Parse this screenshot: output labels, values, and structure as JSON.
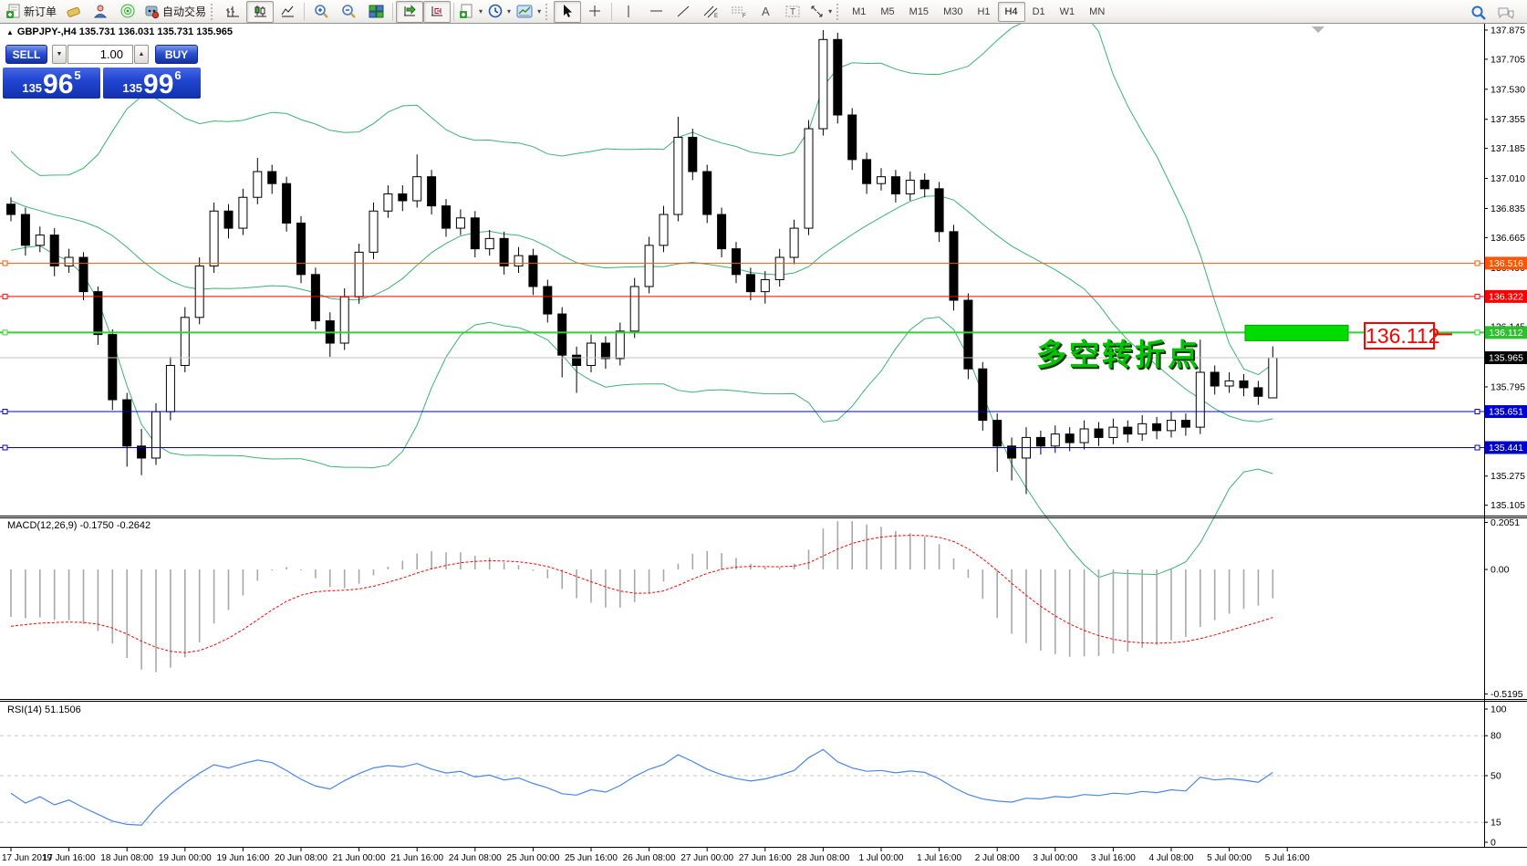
{
  "toolbar": {
    "new_order_label": "新订单",
    "auto_trading_label": "自动交易",
    "timeframes": [
      "M1",
      "M5",
      "M15",
      "M30",
      "H1",
      "H4",
      "D1",
      "W1",
      "MN"
    ],
    "active_timeframe": "H4"
  },
  "one_click": {
    "sell_label": "SELL",
    "buy_label": "BUY",
    "volume": "1.00",
    "sell_price": {
      "small": "135",
      "big": "96",
      "sup": "5"
    },
    "buy_price": {
      "small": "135",
      "big": "99",
      "sup": "6"
    }
  },
  "chart_header": {
    "title": "GBPJPY-,H4  135.731 136.031 135.731 135.965"
  },
  "indicator_labels": {
    "macd": "MACD(12,26,9) -0.1750 -0.2642",
    "rsi": "RSI(14) 51.1506"
  },
  "annotation": {
    "text": "多空转折点",
    "price_label": "136.112"
  },
  "chart_data": {
    "type": "candlestick",
    "symbol": "GBPJPY-",
    "timeframe": "H4",
    "title": "GBPJPY-,H4  135.731 136.031 135.731 135.965",
    "price_axis": {
      "ylim": [
        135.05,
        137.912
      ],
      "ticks": [
        137.875,
        137.705,
        137.53,
        137.355,
        137.185,
        137.01,
        136.835,
        136.665,
        136.49,
        136.145,
        135.795,
        135.275,
        135.105
      ]
    },
    "hlines": [
      {
        "price": 136.516,
        "color": "#ff5500",
        "badge": "#ff5500",
        "width": 1,
        "bid": false
      },
      {
        "price": 136.322,
        "color": "#ff0000",
        "badge": "#ff0000",
        "width": 1,
        "bid": false
      },
      {
        "price": 136.112,
        "color": "#2fd42f",
        "badge": "#2fbe2f",
        "width": 2,
        "bid": false
      },
      {
        "price": 135.965,
        "color": "#c0c0c0",
        "badge": "#000000",
        "width": 1,
        "bid": true
      },
      {
        "price": 135.651,
        "color": "#0000cd",
        "badge": "#0000cd",
        "width": 1,
        "bid": false
      },
      {
        "price": 135.441,
        "color": "#0000cd",
        "badge": "#0000cd",
        "width": 1,
        "bid": false
      }
    ],
    "highlight_rect": {
      "x": 1365,
      "width": 113,
      "price": 136.112,
      "color": "#00dc00"
    },
    "candles": [
      [
        136.86,
        136.9,
        136.76,
        136.8
      ],
      [
        136.8,
        136.84,
        136.56,
        136.62
      ],
      [
        136.62,
        136.73,
        136.58,
        136.68
      ],
      [
        136.68,
        136.72,
        136.44,
        136.5
      ],
      [
        136.5,
        136.6,
        136.46,
        136.55
      ],
      [
        136.55,
        136.58,
        136.3,
        136.35
      ],
      [
        136.35,
        136.38,
        136.04,
        136.1
      ],
      [
        136.1,
        136.13,
        135.66,
        135.72
      ],
      [
        135.72,
        135.76,
        135.33,
        135.45
      ],
      [
        135.45,
        135.55,
        135.28,
        135.38
      ],
      [
        135.38,
        135.7,
        135.34,
        135.65
      ],
      [
        135.65,
        135.97,
        135.6,
        135.92
      ],
      [
        135.92,
        136.26,
        135.88,
        136.2
      ],
      [
        136.2,
        136.55,
        136.16,
        136.5
      ],
      [
        136.5,
        136.87,
        136.46,
        136.82
      ],
      [
        136.82,
        136.86,
        136.66,
        136.72
      ],
      [
        136.72,
        136.95,
        136.68,
        136.9
      ],
      [
        136.9,
        137.13,
        136.86,
        137.05
      ],
      [
        137.05,
        137.09,
        136.92,
        136.98
      ],
      [
        136.98,
        137.02,
        136.7,
        136.75
      ],
      [
        136.75,
        136.79,
        136.4,
        136.45
      ],
      [
        136.45,
        136.49,
        136.13,
        136.18
      ],
      [
        136.18,
        136.23,
        135.97,
        136.05
      ],
      [
        136.05,
        136.37,
        136.01,
        136.32
      ],
      [
        136.32,
        136.63,
        136.28,
        136.58
      ],
      [
        136.58,
        136.87,
        136.54,
        136.82
      ],
      [
        136.82,
        136.97,
        136.78,
        136.92
      ],
      [
        136.92,
        136.97,
        136.82,
        136.88
      ],
      [
        136.88,
        137.15,
        136.84,
        137.02
      ],
      [
        137.02,
        137.06,
        136.8,
        136.85
      ],
      [
        136.85,
        136.89,
        136.67,
        136.72
      ],
      [
        136.72,
        136.83,
        136.68,
        136.78
      ],
      [
        136.78,
        136.82,
        136.55,
        136.6
      ],
      [
        136.6,
        136.71,
        136.56,
        136.66
      ],
      [
        136.66,
        136.7,
        136.45,
        136.5
      ],
      [
        136.5,
        136.61,
        136.46,
        136.56
      ],
      [
        136.56,
        136.6,
        136.33,
        136.38
      ],
      [
        136.38,
        136.42,
        136.17,
        136.22
      ],
      [
        136.22,
        136.26,
        135.85,
        135.98
      ],
      [
        135.98,
        136.03,
        135.76,
        135.92
      ],
      [
        135.92,
        136.1,
        135.88,
        136.05
      ],
      [
        136.05,
        136.09,
        135.9,
        135.96
      ],
      [
        135.96,
        136.17,
        135.92,
        136.12
      ],
      [
        136.12,
        136.43,
        136.08,
        136.38
      ],
      [
        136.38,
        136.67,
        136.34,
        136.62
      ],
      [
        136.62,
        136.85,
        136.58,
        136.8
      ],
      [
        136.8,
        137.37,
        136.76,
        137.25
      ],
      [
        137.25,
        137.3,
        137.0,
        137.05
      ],
      [
        137.05,
        137.09,
        136.75,
        136.8
      ],
      [
        136.8,
        136.84,
        136.55,
        136.6
      ],
      [
        136.6,
        136.64,
        136.4,
        136.45
      ],
      [
        136.45,
        136.49,
        136.3,
        136.35
      ],
      [
        136.35,
        136.47,
        136.28,
        136.42
      ],
      [
        136.42,
        136.6,
        136.38,
        136.55
      ],
      [
        136.55,
        136.77,
        136.51,
        136.72
      ],
      [
        136.72,
        137.35,
        136.68,
        137.3
      ],
      [
        137.3,
        137.875,
        137.26,
        137.82
      ],
      [
        137.82,
        137.86,
        137.33,
        137.38
      ],
      [
        137.38,
        137.42,
        137.06,
        137.12
      ],
      [
        137.12,
        137.16,
        136.92,
        136.98
      ],
      [
        136.98,
        137.07,
        136.94,
        137.02
      ],
      [
        137.02,
        137.06,
        136.87,
        136.92
      ],
      [
        136.92,
        137.05,
        136.88,
        137.0
      ],
      [
        137.0,
        137.04,
        136.9,
        136.95
      ],
      [
        136.95,
        136.99,
        136.64,
        136.7
      ],
      [
        136.7,
        136.74,
        136.24,
        136.3
      ],
      [
        136.3,
        136.34,
        135.84,
        135.9
      ],
      [
        135.9,
        135.94,
        135.54,
        135.6
      ],
      [
        135.6,
        135.64,
        135.3,
        135.45
      ],
      [
        135.45,
        135.5,
        135.25,
        135.38
      ],
      [
        135.38,
        135.56,
        135.17,
        135.5
      ],
      [
        135.5,
        135.54,
        135.4,
        135.45
      ],
      [
        135.45,
        135.57,
        135.41,
        135.52
      ],
      [
        135.52,
        135.56,
        135.42,
        135.47
      ],
      [
        135.47,
        135.6,
        135.43,
        135.55
      ],
      [
        135.55,
        135.59,
        135.45,
        135.5
      ],
      [
        135.5,
        135.61,
        135.46,
        135.56
      ],
      [
        135.56,
        135.6,
        135.47,
        135.52
      ],
      [
        135.52,
        135.63,
        135.48,
        135.58
      ],
      [
        135.58,
        135.62,
        135.49,
        135.54
      ],
      [
        135.54,
        135.65,
        135.5,
        135.6
      ],
      [
        135.6,
        135.64,
        135.51,
        135.56
      ],
      [
        135.56,
        136.07,
        135.52,
        135.88
      ],
      [
        135.88,
        135.92,
        135.75,
        135.8
      ],
      [
        135.8,
        135.88,
        135.76,
        135.83
      ],
      [
        135.83,
        135.87,
        135.74,
        135.79
      ],
      [
        135.79,
        135.83,
        135.69,
        135.74
      ],
      [
        135.731,
        136.031,
        135.731,
        135.965
      ]
    ],
    "indicators": {
      "bollinger": {
        "period": 20,
        "deviation": 2,
        "color": "#3cb371"
      },
      "macd": {
        "fast": 12,
        "slow": 26,
        "signal_period": 9,
        "value": -0.175,
        "signal_value": -0.2642,
        "hist_color": "#a8a8a8",
        "signal_color": "#ff0000"
      },
      "rsi": {
        "period": 14,
        "value": 51.1506,
        "color": "#4a86e8"
      }
    },
    "macd_axis": {
      "max": 0.2051,
      "min": -0.5195,
      "labels": [
        "0.2051",
        "0.00",
        "-0.5195"
      ]
    },
    "rsi_axis": {
      "labels": [
        100,
        80,
        50,
        15,
        0
      ],
      "levels": [
        80,
        50,
        15
      ]
    },
    "time_labels": [
      {
        "bar": 0,
        "text": "17 Jun 2019"
      },
      {
        "bar": 4,
        "text": "17 Jun 16:00"
      },
      {
        "bar": 8,
        "text": "18 Jun 08:00"
      },
      {
        "bar": 12,
        "text": "19 Jun 00:00"
      },
      {
        "bar": 16,
        "text": "19 Jun 16:00"
      },
      {
        "bar": 20,
        "text": "20 Jun 08:00"
      },
      {
        "bar": 24,
        "text": "21 Jun 00:00"
      },
      {
        "bar": 28,
        "text": "21 Jun 16:00"
      },
      {
        "bar": 32,
        "text": "24 Jun 08:00"
      },
      {
        "bar": 36,
        "text": "25 Jun 00:00"
      },
      {
        "bar": 40,
        "text": "25 Jun 16:00"
      },
      {
        "bar": 44,
        "text": "26 Jun 08:00"
      },
      {
        "bar": 48,
        "text": "27 Jun 00:00"
      },
      {
        "bar": 52,
        "text": "27 Jun 16:00"
      },
      {
        "bar": 56,
        "text": "28 Jun 08:00"
      },
      {
        "bar": 60,
        "text": "1 Jul 00:00"
      },
      {
        "bar": 64,
        "text": "1 Jul 16:00"
      },
      {
        "bar": 68,
        "text": "2 Jul 08:00"
      },
      {
        "bar": 72,
        "text": "3 Jul 00:00"
      },
      {
        "bar": 76,
        "text": "3 Jul 16:00"
      },
      {
        "bar": 80,
        "text": "4 Jul 08:00"
      },
      {
        "bar": 84,
        "text": "5 Jul 00:00"
      },
      {
        "bar": 88,
        "text": "5 Jul 16:00"
      }
    ]
  }
}
